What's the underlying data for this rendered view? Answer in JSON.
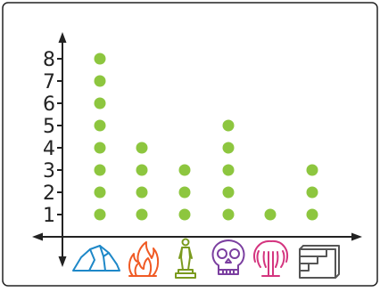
{
  "chart_data": {
    "type": "scatter",
    "style": "dot plot",
    "categories": [
      "rock-icon",
      "fire-icon",
      "statue-icon",
      "skull-icon",
      "willow-tree-icon",
      "stairs-icon"
    ],
    "values": [
      8,
      4,
      3,
      5,
      1,
      3
    ],
    "y_ticks": [
      "1",
      "2",
      "3",
      "4",
      "5",
      "6",
      "7",
      "8"
    ],
    "ylim": [
      0,
      8
    ],
    "grid": false,
    "legend": "none",
    "colors": {
      "dot": "#8dc63f",
      "axis": "#222222",
      "frame": "#222222",
      "icons": [
        "#1e88c8",
        "#f05a24",
        "#7a9a1e",
        "#7b3fa0",
        "#d4357f",
        "#555555"
      ]
    }
  }
}
